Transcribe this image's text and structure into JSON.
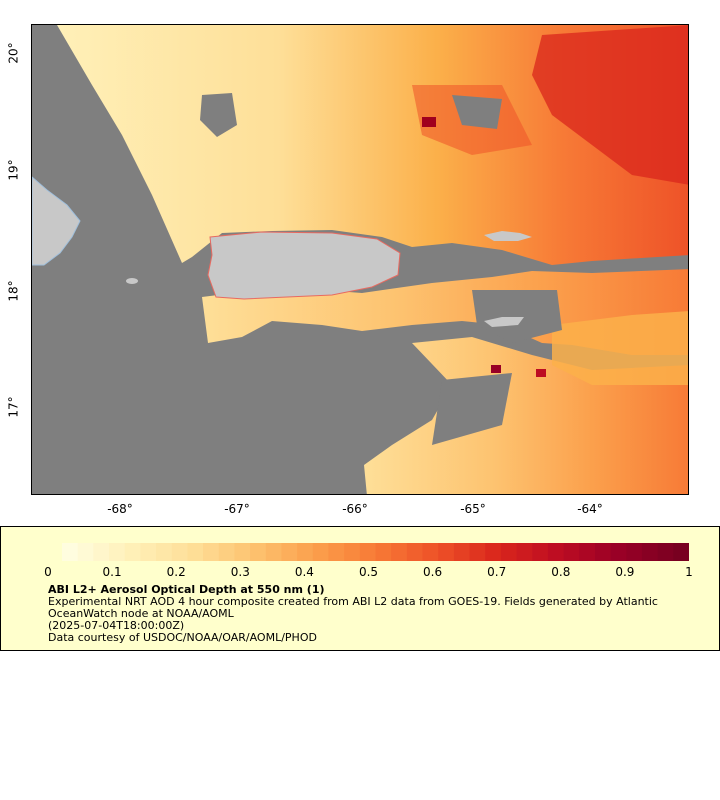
{
  "map": {
    "lat_labels": [
      "20°",
      "19°",
      "18°",
      "17°"
    ],
    "lon_labels": [
      "-68°",
      "-67°",
      "-66°",
      "-65°",
      "-64°"
    ],
    "lat_values": [
      20,
      19,
      18,
      17
    ],
    "lon_values": [
      -68,
      -67,
      -66,
      -65,
      -64
    ],
    "lat_range": [
      16.35,
      20.25
    ],
    "lon_range": [
      -68.75,
      -63.25
    ],
    "colors": {
      "nodata": "#7f7f7f",
      "land": "#c8c8c8",
      "aod_low": "#fff2c0",
      "aod_mid": "#fbb04a",
      "aod_high": "#a0001e"
    }
  },
  "colorbar": {
    "tick_labels": [
      "0",
      "0.1",
      "0.2",
      "0.3",
      "0.4",
      "0.5",
      "0.6",
      "0.7",
      "0.8",
      "0.9",
      "1"
    ],
    "min": 0,
    "max": 1,
    "stops": [
      "#fffddf",
      "#fff0b8",
      "#fedf98",
      "#fdc370",
      "#fba04c",
      "#f77a36",
      "#ee5228",
      "#d9261c",
      "#bd0c22",
      "#980026",
      "#780020"
    ]
  },
  "legend": {
    "title": "ABI L2+ Aerosol Optical Depth at 550 nm (1)",
    "line1": "Experimental NRT AOD 4 hour composite created from ABI L2 data from GOES-19. Fields generated by Atlantic OceanWatch node at NOAA/AOML",
    "time": "(2025-07-04T18:00:00Z)",
    "credit": "Data courtesy of USDOC/NOAA/OAR/AOML/PHOD"
  }
}
